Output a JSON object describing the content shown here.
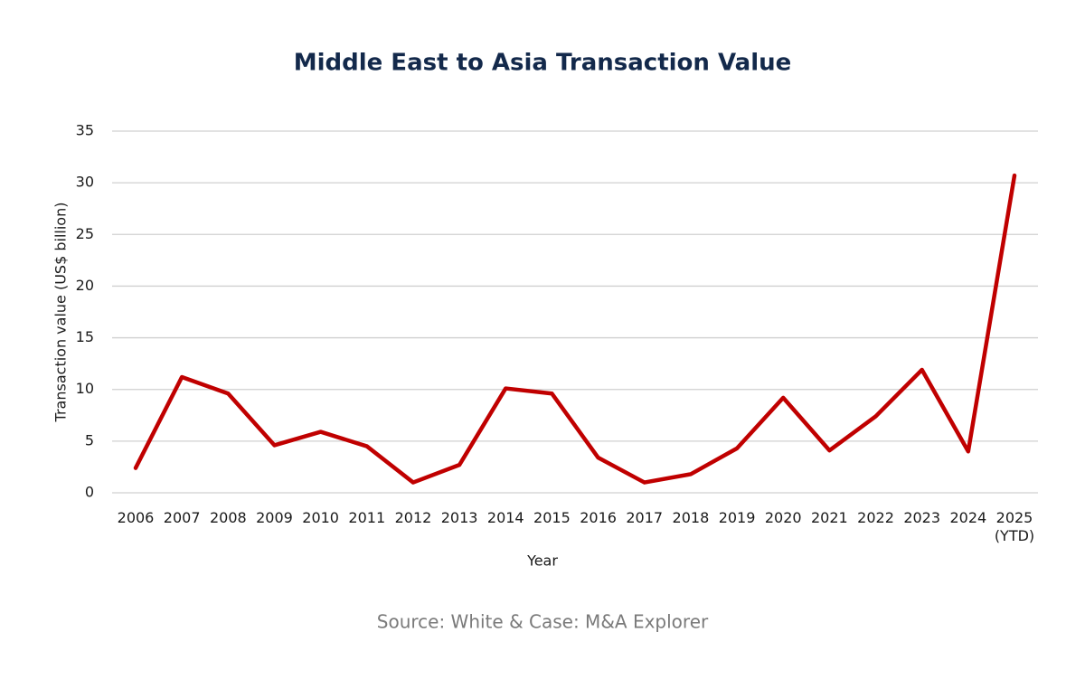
{
  "chart_data": {
    "type": "line",
    "title": "Middle East to Asia Transaction Value",
    "x_label": "Year",
    "y_label": "Transaction value (US$ billion)",
    "source": "Source: White & Case: M&A Explorer",
    "categories": [
      "2006",
      "2007",
      "2008",
      "2009",
      "2010",
      "2011",
      "2012",
      "2013",
      "2014",
      "2015",
      "2016",
      "2017",
      "2018",
      "2019",
      "2020",
      "2021",
      "2022",
      "2023",
      "2024",
      "2025 (YTD)"
    ],
    "series": [
      {
        "name": "Transaction value",
        "color": "#c00000",
        "values": [
          2.4,
          11.2,
          9.6,
          4.6,
          5.9,
          4.5,
          1.0,
          2.7,
          10.1,
          9.6,
          3.4,
          1.0,
          1.8,
          4.3,
          9.2,
          4.1,
          7.4,
          11.9,
          4.0,
          30.7
        ]
      }
    ],
    "ylim": [
      0,
      35
    ],
    "yticks": [
      0,
      5,
      10,
      15,
      20,
      25,
      30,
      35
    ],
    "grid": true
  }
}
